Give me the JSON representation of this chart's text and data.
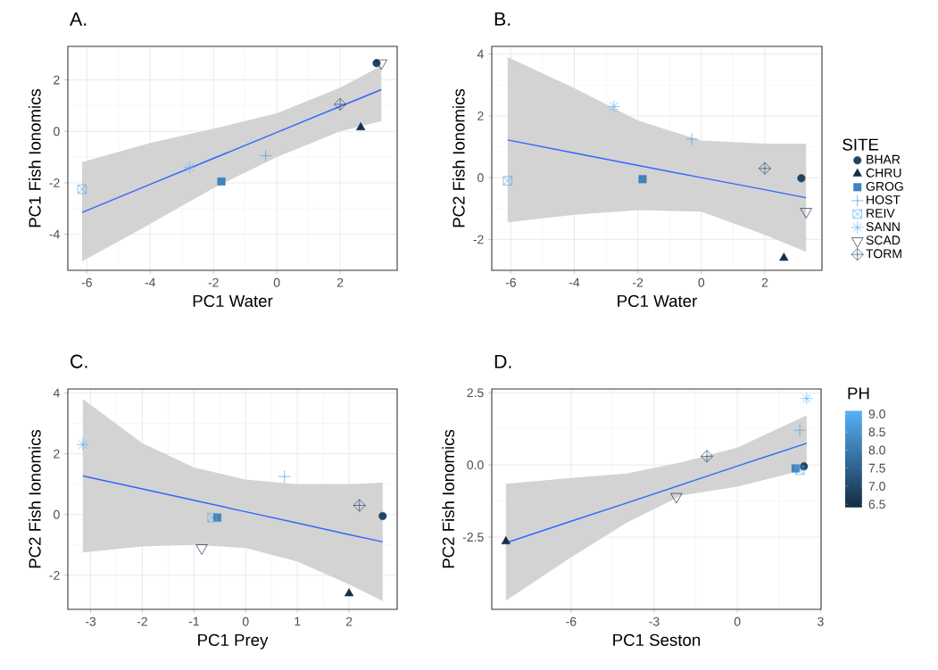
{
  "chart_data": [
    {
      "type": "scatter",
      "title": "A.",
      "xlabel": "PC1 Water",
      "ylabel": "PC1 Fish Ionomics",
      "xlim": [
        -6.6,
        3.8
      ],
      "ylim": [
        -5.4,
        3.3
      ],
      "xticks": [
        -6,
        -4,
        -2,
        0,
        2
      ],
      "yticks": [
        -4,
        -2,
        0,
        2
      ],
      "grid": true,
      "series": [
        {
          "marker": "circle",
          "color": "#1f4464",
          "x": [
            3.15
          ],
          "values": [
            2.65
          ]
        },
        {
          "marker": "triangle",
          "color": "#15304a",
          "x": [
            2.65
          ],
          "values": [
            0.15
          ]
        },
        {
          "marker": "square",
          "color": "#4084bb",
          "x": [
            -1.75
          ],
          "values": [
            -1.95
          ]
        },
        {
          "marker": "cross",
          "color": "#4a98d6",
          "x": [
            -0.35
          ],
          "values": [
            -0.95
          ]
        },
        {
          "marker": "cross",
          "color": "#51a7ea",
          "x": [
            -6.15
          ],
          "values": [
            -2.25
          ]
        },
        {
          "marker": "cross",
          "color": "#56b1f7",
          "x": [
            -2.75
          ],
          "values": [
            -1.4
          ]
        },
        {
          "marker": "triangle",
          "color": "#132b43",
          "x": [
            3.3
          ],
          "values": [
            2.65
          ]
        },
        {
          "marker": "cross",
          "color": "#22496b",
          "x": [
            2.0
          ],
          "values": [
            1.05
          ]
        },
        {
          "type": "line",
          "color": "#3366ff",
          "x": [
            -6.15,
            -4,
            -2,
            0,
            2,
            3.3
          ],
          "values": [
            -3.15,
            -2.06,
            -1.05,
            -0.04,
            0.97,
            1.62
          ],
          "lower": [
            -5.05,
            -3.6,
            -2.2,
            -1.0,
            0.0,
            0.4
          ],
          "upper": [
            -1.2,
            -0.45,
            0.1,
            0.7,
            1.7,
            2.55
          ]
        }
      ]
    },
    {
      "type": "scatter",
      "title": "B.",
      "xlabel": "PC1 Water",
      "ylabel": "PC2 Fish Ionomics",
      "xlim": [
        -6.6,
        3.8
      ],
      "ylim": [
        -3.0,
        4.25
      ],
      "xticks": [
        -6,
        -4,
        -2,
        0,
        2
      ],
      "yticks": [
        -2,
        0,
        2,
        4
      ],
      "grid": true,
      "legend": "right",
      "legend_title": "SITE",
      "series": [
        {
          "name": "BHAR",
          "marker": "circle",
          "color": "#1f4464",
          "x": [
            3.15
          ],
          "values": [
            -0.02
          ]
        },
        {
          "name": "CHRU",
          "marker": "triangle",
          "color": "#15304a",
          "x": [
            2.6
          ],
          "values": [
            -2.6
          ]
        },
        {
          "name": "GROG",
          "marker": "square",
          "color": "#4084bb",
          "x": [
            -1.85
          ],
          "values": [
            -0.05
          ]
        },
        {
          "name": "HOST",
          "marker": "cross",
          "color": "#4a98d6",
          "x": [
            -0.3
          ],
          "values": [
            1.25
          ]
        },
        {
          "name": "REIV",
          "marker": "cross",
          "color": "#51a7ea",
          "x": [
            -6.1
          ],
          "values": [
            -0.1
          ]
        },
        {
          "name": "SANN",
          "marker": "cross",
          "color": "#56b1f7",
          "x": [
            -2.75
          ],
          "values": [
            2.3
          ]
        },
        {
          "name": "SCAD",
          "marker": "triangle",
          "color": "#132b43",
          "x": [
            3.3
          ],
          "values": [
            -1.1
          ]
        },
        {
          "name": "TORM",
          "marker": "cross",
          "color": "#22496b",
          "x": [
            2.0
          ],
          "values": [
            0.3
          ]
        },
        {
          "type": "line",
          "color": "#3366ff",
          "x": [
            -6.1,
            -4,
            -2,
            0,
            2,
            3.3
          ],
          "values": [
            1.22,
            0.8,
            0.4,
            0.0,
            -0.39,
            -0.65
          ],
          "lower": [
            -1.45,
            -1.2,
            -1.05,
            -1.1,
            -1.85,
            -2.4
          ],
          "upper": [
            3.9,
            2.9,
            1.85,
            1.2,
            1.1,
            1.1
          ]
        }
      ]
    },
    {
      "type": "scatter",
      "title": "C.",
      "xlabel": "PC1 Prey",
      "ylabel": "PC2 Fish Ionomics",
      "xlim": [
        -3.44,
        2.93
      ],
      "ylim": [
        -3.12,
        4.13
      ],
      "xticks": [
        -3,
        -2,
        -1,
        0,
        1,
        2
      ],
      "yticks": [
        -2,
        0,
        2,
        4
      ],
      "grid": true,
      "series": [
        {
          "marker": "circle",
          "color": "#1f4464",
          "x": [
            2.65
          ],
          "values": [
            -0.05
          ]
        },
        {
          "marker": "triangle",
          "color": "#15304a",
          "x": [
            2.0
          ],
          "values": [
            -2.6
          ]
        },
        {
          "marker": "square",
          "color": "#4084bb",
          "x": [
            -0.55
          ],
          "values": [
            -0.1
          ]
        },
        {
          "marker": "cross",
          "color": "#4a98d6",
          "x": [
            0.75
          ],
          "values": [
            1.25
          ]
        },
        {
          "marker": "cross",
          "color": "#51a7ea",
          "x": [
            -0.65
          ],
          "values": [
            -0.1
          ]
        },
        {
          "marker": "cross",
          "color": "#56b1f7",
          "x": [
            -3.15
          ],
          "values": [
            2.3
          ]
        },
        {
          "marker": "triangle",
          "color": "#132b43",
          "x": [
            -0.85
          ],
          "values": [
            -1.1
          ]
        },
        {
          "marker": "cross",
          "color": "#22496b",
          "x": [
            2.2
          ],
          "values": [
            0.3
          ]
        },
        {
          "type": "line",
          "color": "#3366ff",
          "x": [
            -3.15,
            -2,
            -1,
            0,
            1,
            2,
            2.65
          ],
          "values": [
            1.27,
            0.84,
            0.47,
            0.09,
            -0.28,
            -0.66,
            -0.9
          ],
          "lower": [
            -1.25,
            -1.05,
            -1.0,
            -1.1,
            -1.55,
            -2.3,
            -2.85
          ],
          "upper": [
            3.8,
            2.35,
            1.55,
            1.15,
            1.0,
            1.0,
            1.05
          ]
        }
      ]
    },
    {
      "type": "scatter",
      "title": "D.",
      "xlabel": "PC1 Seston",
      "ylabel": "PC2 Fish Ionomics",
      "xlim": [
        -8.86,
        3.02
      ],
      "ylim": [
        -5.0,
        2.63
      ],
      "xticks": [
        -6,
        -3,
        0,
        3
      ],
      "yticks": [
        {
          "value": -2.5,
          "label": "-2.5"
        },
        {
          "value": 0,
          "label": "0.0"
        },
        {
          "value": 2.5,
          "label": "2.5"
        }
      ],
      "grid": true,
      "clabel": "PH",
      "clim": [
        6.4,
        9.1
      ],
      "cticks": [
        {
          "value": 6.5,
          "label": "6.5"
        },
        {
          "value": 7,
          "label": "7.0"
        },
        {
          "value": 7.5,
          "label": "7.5"
        },
        {
          "value": 8,
          "label": "8.0"
        },
        {
          "value": 8.5,
          "label": "8.5"
        },
        {
          "value": 9,
          "label": "9.0"
        }
      ],
      "series": [
        {
          "marker": "circle",
          "x": [
            2.4
          ],
          "values": [
            -0.05
          ],
          "cvalues": [
            6.9
          ]
        },
        {
          "marker": "triangle",
          "x": [
            -8.35
          ],
          "values": [
            -2.65
          ],
          "cvalues": [
            6.5
          ]
        },
        {
          "marker": "square",
          "x": [
            2.1
          ],
          "values": [
            -0.12
          ],
          "cvalues": [
            8.2
          ]
        },
        {
          "marker": "cross",
          "x": [
            2.25
          ],
          "values": [
            1.2
          ],
          "cvalues": [
            8.6
          ]
        },
        {
          "marker": "cross",
          "x": [
            2.25
          ],
          "values": [
            -0.18
          ],
          "cvalues": [
            8.9
          ]
        },
        {
          "marker": "cross",
          "x": [
            2.5
          ],
          "values": [
            2.3
          ],
          "cvalues": [
            9.1
          ]
        },
        {
          "marker": "triangle",
          "x": [
            -2.2
          ],
          "values": [
            -1.1
          ],
          "cvalues": [
            6.4
          ]
        },
        {
          "marker": "cross",
          "x": [
            -1.1
          ],
          "values": [
            0.3
          ],
          "cvalues": [
            7.0
          ]
        },
        {
          "type": "line",
          "color": "#3366ff",
          "x": [
            -8.35,
            -6,
            -4,
            -2,
            0,
            2.5
          ],
          "values": [
            -2.7,
            -1.95,
            -1.32,
            -0.68,
            -0.04,
            0.75
          ],
          "lower": [
            -4.7,
            -3.2,
            -2.0,
            -1.05,
            -0.75,
            -0.15
          ],
          "upper": [
            -0.65,
            -0.45,
            -0.3,
            0.1,
            0.6,
            1.72
          ]
        }
      ]
    }
  ]
}
